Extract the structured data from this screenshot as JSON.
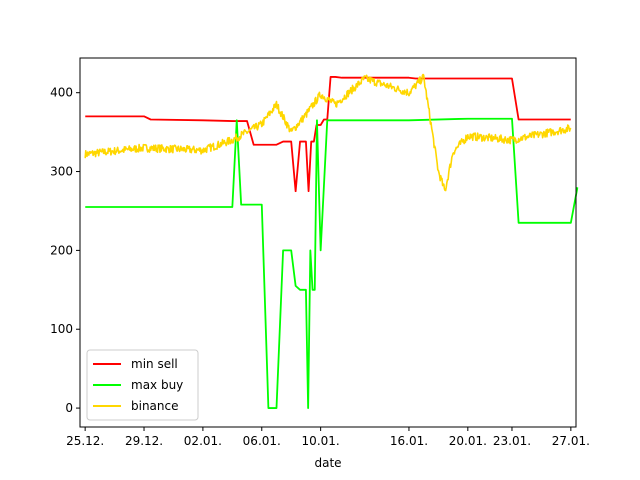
{
  "chart_data": {
    "type": "line",
    "title": "",
    "xlabel": "date",
    "ylabel": "",
    "x_tick_labels": [
      "25.12.",
      "29.12.",
      "02.01.",
      "06.01.",
      "10.01.",
      "16.01.",
      "20.01.",
      "23.01.",
      "27.01."
    ],
    "y_ticks": [
      0,
      100,
      200,
      300,
      400
    ],
    "ylim": [
      -24,
      444
    ],
    "grid": false,
    "legend_position": "lower left",
    "series": [
      {
        "name": "min sell",
        "color": "#ff0000",
        "style": "step",
        "points": [
          [
            "25.12.",
            370
          ],
          [
            "29.12.",
            370
          ],
          [
            "29.12.",
            366
          ],
          [
            "02.01.",
            365
          ],
          [
            "04.01.",
            364
          ],
          [
            "05.01.",
            364
          ],
          [
            "05.01.",
            334
          ],
          [
            "07.01.",
            334
          ],
          [
            "07.01.",
            338
          ],
          [
            "08.01.",
            338
          ],
          [
            "08.01.",
            275
          ],
          [
            "08.01.",
            338
          ],
          [
            "09.01.",
            338
          ],
          [
            "09.01.",
            275
          ],
          [
            "09.01.",
            338
          ],
          [
            "09.01.",
            338
          ],
          [
            "09.01.",
            359
          ],
          [
            "10.01.",
            359
          ],
          [
            "10.01.",
            366
          ],
          [
            "10.01.",
            366
          ],
          [
            "10.01.",
            420
          ],
          [
            "11.01.",
            420
          ],
          [
            "11.01.",
            419
          ],
          [
            "16.01.",
            419
          ],
          [
            "16.01.",
            418
          ],
          [
            "23.01.",
            418
          ],
          [
            "23.01.",
            366
          ],
          [
            "27.01.",
            366
          ]
        ]
      },
      {
        "name": "max buy",
        "color": "#00ff00",
        "style": "step",
        "points": [
          [
            "25.12.",
            255
          ],
          [
            "04.01.",
            255
          ],
          [
            "04.01.",
            365
          ],
          [
            "04.01.",
            258
          ],
          [
            "06.01.",
            258
          ],
          [
            "06.01.",
            0
          ],
          [
            "07.01.",
            0
          ],
          [
            "07.01.",
            200
          ],
          [
            "08.01.",
            200
          ],
          [
            "08.01.",
            155
          ],
          [
            "08.01.",
            150
          ],
          [
            "09.01.",
            150
          ],
          [
            "09.01.",
            0
          ],
          [
            "09.01.",
            200
          ],
          [
            "09.01.",
            150
          ],
          [
            "09.01.",
            150
          ],
          [
            "09.01.",
            365
          ],
          [
            "10.01.",
            200
          ],
          [
            "10.01.",
            365
          ],
          [
            "16.01.",
            365
          ],
          [
            "20.01.",
            367
          ],
          [
            "23.01.",
            367
          ],
          [
            "23.01.",
            235
          ],
          [
            "27.01.",
            235
          ],
          [
            "27.01.",
            280
          ]
        ]
      },
      {
        "name": "binance",
        "color": "#ffd700",
        "style": "line",
        "points": [
          [
            "25.12.",
            322
          ],
          [
            "29.12.",
            330
          ],
          [
            "02.01.",
            327
          ],
          [
            "04.01.",
            340
          ],
          [
            "06.01.",
            360
          ],
          [
            "07.01.",
            385
          ],
          [
            "08.01.",
            350
          ],
          [
            "09.01.",
            372
          ],
          [
            "10.01.",
            398
          ],
          [
            "11.01.",
            385
          ],
          [
            "13.01.",
            418
          ],
          [
            "16.01.",
            400
          ],
          [
            "17.01.",
            420
          ],
          [
            "18.01.",
            300
          ],
          [
            "18.01.",
            275
          ],
          [
            "19.01.",
            325
          ],
          [
            "20.01.",
            345
          ],
          [
            "23.01.",
            340
          ],
          [
            "27.01.",
            355
          ]
        ]
      }
    ]
  }
}
